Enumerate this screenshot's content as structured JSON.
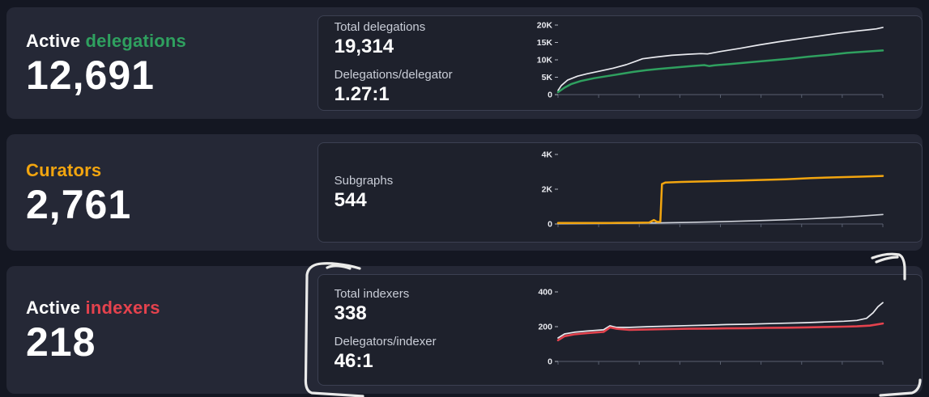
{
  "page": {
    "background": "#141722"
  },
  "cards": [
    {
      "title_prefix": "Active ",
      "title_highlight": "delegations",
      "accent": "#2fa05f",
      "big_number": "12,691",
      "stats": [
        {
          "label": "Total delegations",
          "value": "19,314"
        },
        {
          "label": "Delegations/delegator",
          "value": "1.27:1"
        }
      ]
    },
    {
      "title_prefix": "",
      "title_highlight": "Curators",
      "accent": "#f2a50f",
      "big_number": "2,761",
      "stats": [
        {
          "label": "Subgraphs",
          "value": "544"
        }
      ]
    },
    {
      "title_prefix": "Active ",
      "title_highlight": "indexers",
      "accent": "#e4424d",
      "big_number": "218",
      "stats": [
        {
          "label": "Total indexers",
          "value": "338"
        },
        {
          "label": "Delegators/indexer",
          "value": "46:1"
        }
      ]
    }
  ],
  "annotation": {
    "style": "hand-drawn-marker",
    "color": "#f3f3f1"
  },
  "chart_data": [
    {
      "type": "line",
      "title": "Delegations over time",
      "xlabel": "",
      "ylabel": "",
      "ylim": [
        0,
        20000
      ],
      "yticks": [
        {
          "label": "0",
          "value": 0
        },
        {
          "label": "5K",
          "value": 5000
        },
        {
          "label": "10K",
          "value": 10000
        },
        {
          "label": "15K",
          "value": 15000
        },
        {
          "label": "20K",
          "value": 20000
        }
      ],
      "x_axis": {
        "labels": false,
        "tick_count": 9
      },
      "series": [
        {
          "name": "Total delegations",
          "color": "#e9eaef",
          "width": 1.7,
          "points": [
            [
              0,
              1200
            ],
            [
              1,
              2600
            ],
            [
              3,
              4200
            ],
            [
              6,
              5300
            ],
            [
              9,
              6000
            ],
            [
              13,
              6800
            ],
            [
              17,
              7600
            ],
            [
              21,
              8600
            ],
            [
              24,
              9600
            ],
            [
              26,
              10300
            ],
            [
              30,
              10800
            ],
            [
              35,
              11300
            ],
            [
              40,
              11600
            ],
            [
              44,
              11800
            ],
            [
              46,
              11700
            ],
            [
              50,
              12400
            ],
            [
              56,
              13300
            ],
            [
              62,
              14300
            ],
            [
              68,
              15200
            ],
            [
              74,
              16000
            ],
            [
              80,
              16800
            ],
            [
              86,
              17600
            ],
            [
              92,
              18300
            ],
            [
              96,
              18700
            ],
            [
              98,
              18900
            ],
            [
              100,
              19314
            ]
          ]
        },
        {
          "name": "Active delegations",
          "color": "#2fa05f",
          "width": 2.5,
          "points": [
            [
              0,
              700
            ],
            [
              2,
              2000
            ],
            [
              4,
              3000
            ],
            [
              7,
              3900
            ],
            [
              11,
              4700
            ],
            [
              15,
              5300
            ],
            [
              19,
              5900
            ],
            [
              23,
              6500
            ],
            [
              27,
              7000
            ],
            [
              31,
              7400
            ],
            [
              36,
              7800
            ],
            [
              41,
              8200
            ],
            [
              45,
              8500
            ],
            [
              46.5,
              8200
            ],
            [
              48,
              8400
            ],
            [
              53,
              8800
            ],
            [
              59,
              9300
            ],
            [
              65,
              9800
            ],
            [
              71,
              10300
            ],
            [
              77,
              10900
            ],
            [
              83,
              11400
            ],
            [
              89,
              12000
            ],
            [
              95,
              12400
            ],
            [
              100,
              12691
            ]
          ]
        }
      ]
    },
    {
      "type": "line",
      "title": "Curators and subgraphs over time",
      "xlabel": "",
      "ylabel": "",
      "ylim": [
        0,
        4000
      ],
      "yticks": [
        {
          "label": "0",
          "value": 0
        },
        {
          "label": "2K",
          "value": 2000
        },
        {
          "label": "4K",
          "value": 4000
        }
      ],
      "x_axis": {
        "labels": false,
        "tick_count": 9
      },
      "series": [
        {
          "name": "Subgraphs",
          "color": "#cfd2da",
          "width": 1.6,
          "points": [
            [
              0,
              15
            ],
            [
              10,
              25
            ],
            [
              20,
              40
            ],
            [
              30,
              60
            ],
            [
              40,
              90
            ],
            [
              50,
              130
            ],
            [
              60,
              180
            ],
            [
              70,
              240
            ],
            [
              78,
              300
            ],
            [
              86,
              370
            ],
            [
              93,
              450
            ],
            [
              100,
              544
            ]
          ]
        },
        {
          "name": "Curators",
          "color": "#f2a50f",
          "width": 2.5,
          "points": [
            [
              0,
              55
            ],
            [
              8,
              55
            ],
            [
              16,
              60
            ],
            [
              24,
              70
            ],
            [
              28,
              80
            ],
            [
              29.5,
              230
            ],
            [
              30.5,
              120
            ],
            [
              31.5,
              130
            ],
            [
              32,
              2300
            ],
            [
              33,
              2380
            ],
            [
              38,
              2420
            ],
            [
              46,
              2450
            ],
            [
              54,
              2490
            ],
            [
              62,
              2530
            ],
            [
              70,
              2570
            ],
            [
              78,
              2640
            ],
            [
              86,
              2690
            ],
            [
              93,
              2720
            ],
            [
              100,
              2761
            ]
          ]
        }
      ]
    },
    {
      "type": "line",
      "title": "Indexers over time",
      "xlabel": "",
      "ylabel": "",
      "ylim": [
        0,
        400
      ],
      "yticks": [
        {
          "label": "0",
          "value": 0
        },
        {
          "label": "200",
          "value": 200
        },
        {
          "label": "400",
          "value": 400
        }
      ],
      "x_axis": {
        "labels": false,
        "tick_count": 9
      },
      "series": [
        {
          "name": "Total indexers",
          "color": "#e9eaef",
          "width": 1.7,
          "points": [
            [
              0,
              135
            ],
            [
              2,
              158
            ],
            [
              5,
              168
            ],
            [
              9,
              175
            ],
            [
              14,
              182
            ],
            [
              16,
              205
            ],
            [
              18,
              196
            ],
            [
              22,
              196
            ],
            [
              28,
              200
            ],
            [
              34,
              203
            ],
            [
              40,
              206
            ],
            [
              46,
              209
            ],
            [
              52,
              212
            ],
            [
              58,
              214
            ],
            [
              64,
              217
            ],
            [
              70,
              220
            ],
            [
              76,
              223
            ],
            [
              82,
              227
            ],
            [
              88,
              231
            ],
            [
              92,
              236
            ],
            [
              95,
              248
            ],
            [
              97,
              280
            ],
            [
              98.5,
              315
            ],
            [
              100,
              338
            ]
          ]
        },
        {
          "name": "Active indexers",
          "color": "#e4424d",
          "width": 2.6,
          "points": [
            [
              0,
              122
            ],
            [
              2,
              145
            ],
            [
              5,
              156
            ],
            [
              9,
              163
            ],
            [
              14,
              170
            ],
            [
              16,
              196
            ],
            [
              18,
              188
            ],
            [
              22,
              182
            ],
            [
              28,
              184
            ],
            [
              34,
              186
            ],
            [
              40,
              188
            ],
            [
              46,
              189
            ],
            [
              52,
              190
            ],
            [
              58,
              191
            ],
            [
              64,
              193
            ],
            [
              70,
              194
            ],
            [
              76,
              196
            ],
            [
              82,
              198
            ],
            [
              88,
              200
            ],
            [
              92,
              202
            ],
            [
              96,
              206
            ],
            [
              100,
              218
            ]
          ]
        }
      ]
    }
  ]
}
